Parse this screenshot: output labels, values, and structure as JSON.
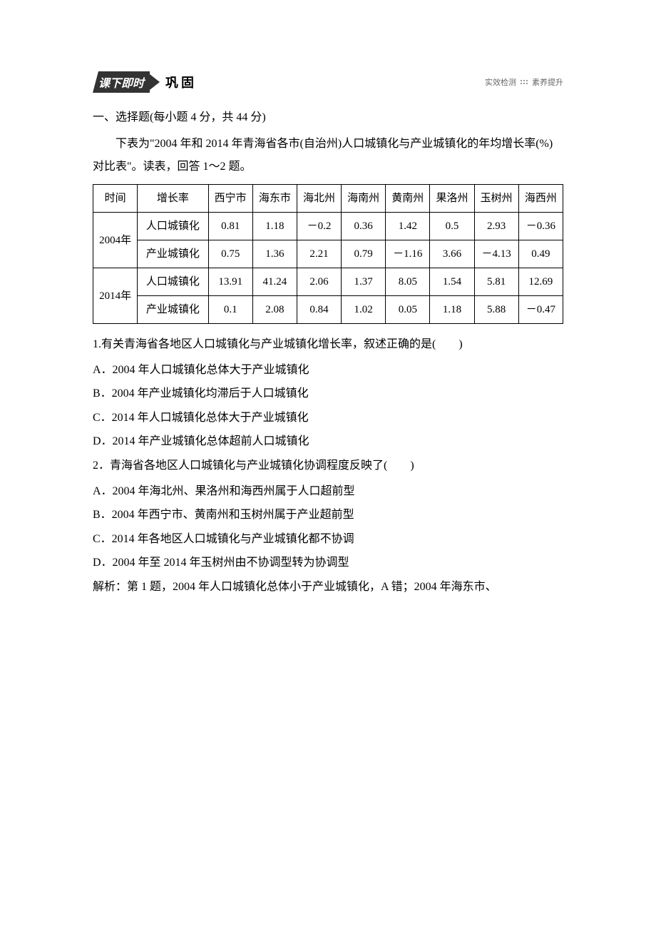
{
  "banner": {
    "dark_label": "课下即时",
    "light_label": "巩固",
    "right_left": "实效检测",
    "right_right": "素养提升"
  },
  "section_title": "一、选择题(每小题 4 分，共 44 分)",
  "intro": "下表为\"2004 年和 2014 年青海省各市(自治州)人口城镇化与产业城镇化的年均增长率(%)对比表\"。读表，回答 1～2 题。",
  "table": {
    "headers": {
      "time": "时间",
      "rate": "增长率",
      "c1": "西宁市",
      "c2": "海东市",
      "c3": "海北州",
      "c4": "海南州",
      "c5": "黄南州",
      "c6": "果洛州",
      "c7": "玉树州",
      "c8": "海西州"
    },
    "row_labels": {
      "y2004": "2004年",
      "y2014": "2014年",
      "pop": "人口城镇化",
      "ind": "产业城镇化"
    },
    "data": {
      "y2004_pop": [
        "0.81",
        "1.18",
        "－0.2",
        "0.36",
        "1.42",
        "0.5",
        "2.93",
        "－0.36"
      ],
      "y2004_ind": [
        "0.75",
        "1.36",
        "2.21",
        "0.79",
        "－1.16",
        "3.66",
        "－4.13",
        "0.49"
      ],
      "y2014_pop": [
        "13.91",
        "41.24",
        "2.06",
        "1.37",
        "8.05",
        "1.54",
        "5.81",
        "12.69"
      ],
      "y2014_ind": [
        "0.1",
        "2.08",
        "0.84",
        "1.02",
        "0.05",
        "1.18",
        "5.88",
        "－0.47"
      ]
    }
  },
  "q1": {
    "stem": "1.有关青海省各地区人口城镇化与产业城镇化增长率，叙述正确的是(　　)",
    "a": "A．2004 年人口城镇化总体大于产业城镇化",
    "b": "B．2004 年产业城镇化均滞后于人口城镇化",
    "c": "C．2014 年人口城镇化总体大于产业城镇化",
    "d": "D．2014 年产业城镇化总体超前人口城镇化"
  },
  "q2": {
    "stem": "2．青海省各地区人口城镇化与产业城镇化协调程度反映了(　　)",
    "a": "A．2004 年海北州、果洛州和海西州属于人口超前型",
    "b": "B．2004 年西宁市、黄南州和玉树州属于产业超前型",
    "c": "C．2014 年各地区人口城镇化与产业城镇化都不协调",
    "d": "D．2004 年至 2014 年玉树州由不协调型转为协调型"
  },
  "analysis": "解析：第 1 题，2004 年人口城镇化总体小于产业城镇化，A 错；2004 年海东市、",
  "colors": {
    "text": "#000000",
    "banner_bg": "#333333",
    "banner_text": "#ffffff",
    "right_text": "#666666",
    "border": "#000000",
    "background": "#ffffff"
  },
  "fonts": {
    "body_size": 16,
    "small_size": 11,
    "family": "SimSun"
  }
}
